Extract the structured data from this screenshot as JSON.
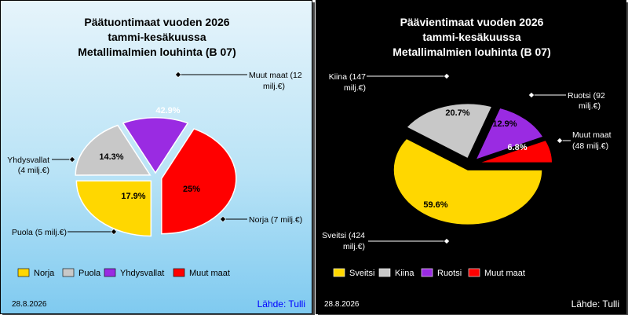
{
  "chart_data": [
    {
      "type": "pie",
      "title": [
        "Päätuontimaat vuoden 2026",
        "tammi-kesäkuussa",
        "Metallimalmien louhinta (B 07)"
      ],
      "slices": [
        {
          "name": "Norja",
          "value": 25,
          "label_pct": "25%",
          "callout": [
            "Norja (7 milj.€)"
          ],
          "color": "#ffd700"
        },
        {
          "name": "Puola",
          "value": 17.9,
          "label_pct": "17.9%",
          "callout": [
            "Puola (5 milj.€)"
          ],
          "color": "#c8c8c8"
        },
        {
          "name": "Yhdysvallat",
          "value": 14.3,
          "label_pct": "14.3%",
          "callout": [
            "Yhdysvallat",
            "(4 milj.€)"
          ],
          "color": "#9a2be2"
        },
        {
          "name": "Muut maat",
          "value": 42.9,
          "label_pct": "42.9%",
          "callout": [
            "Muut maat (12",
            "milj.€)"
          ],
          "color": "#ff0000"
        }
      ],
      "legend": [
        "Norja",
        "Puola",
        "Yhdysvallat",
        "Muut maat"
      ],
      "date": "28.8.2026",
      "source": "Lähde: Tulli"
    },
    {
      "type": "pie",
      "title": [
        "Päävientimaat vuoden 2026",
        "tammi-kesäkuussa",
        "Metallimalmien louhinta (B 07)"
      ],
      "slices": [
        {
          "name": "Sveitsi",
          "value": 59.6,
          "label_pct": "59.6%",
          "callout": [
            "Sveitsi (424",
            "milj.€)"
          ],
          "color": "#ffd700"
        },
        {
          "name": "Kiina",
          "value": 20.7,
          "label_pct": "20.7%",
          "callout": [
            "Kiina (147",
            "milj.€)"
          ],
          "color": "#c8c8c8"
        },
        {
          "name": "Ruotsi",
          "value": 12.9,
          "label_pct": "12.9%",
          "callout": [
            "Ruotsi (92",
            "milj.€)"
          ],
          "color": "#9a2be2"
        },
        {
          "name": "Muut maat",
          "value": 6.8,
          "label_pct": "6.8%",
          "callout": [
            "Muut maat",
            "(48 milj.€)"
          ],
          "color": "#ff0000"
        }
      ],
      "legend": [
        "Sveitsi",
        "Kiina",
        "Ruotsi",
        "Muut maat"
      ],
      "date": "28.8.2026",
      "source": "Lähde: Tulli"
    }
  ]
}
